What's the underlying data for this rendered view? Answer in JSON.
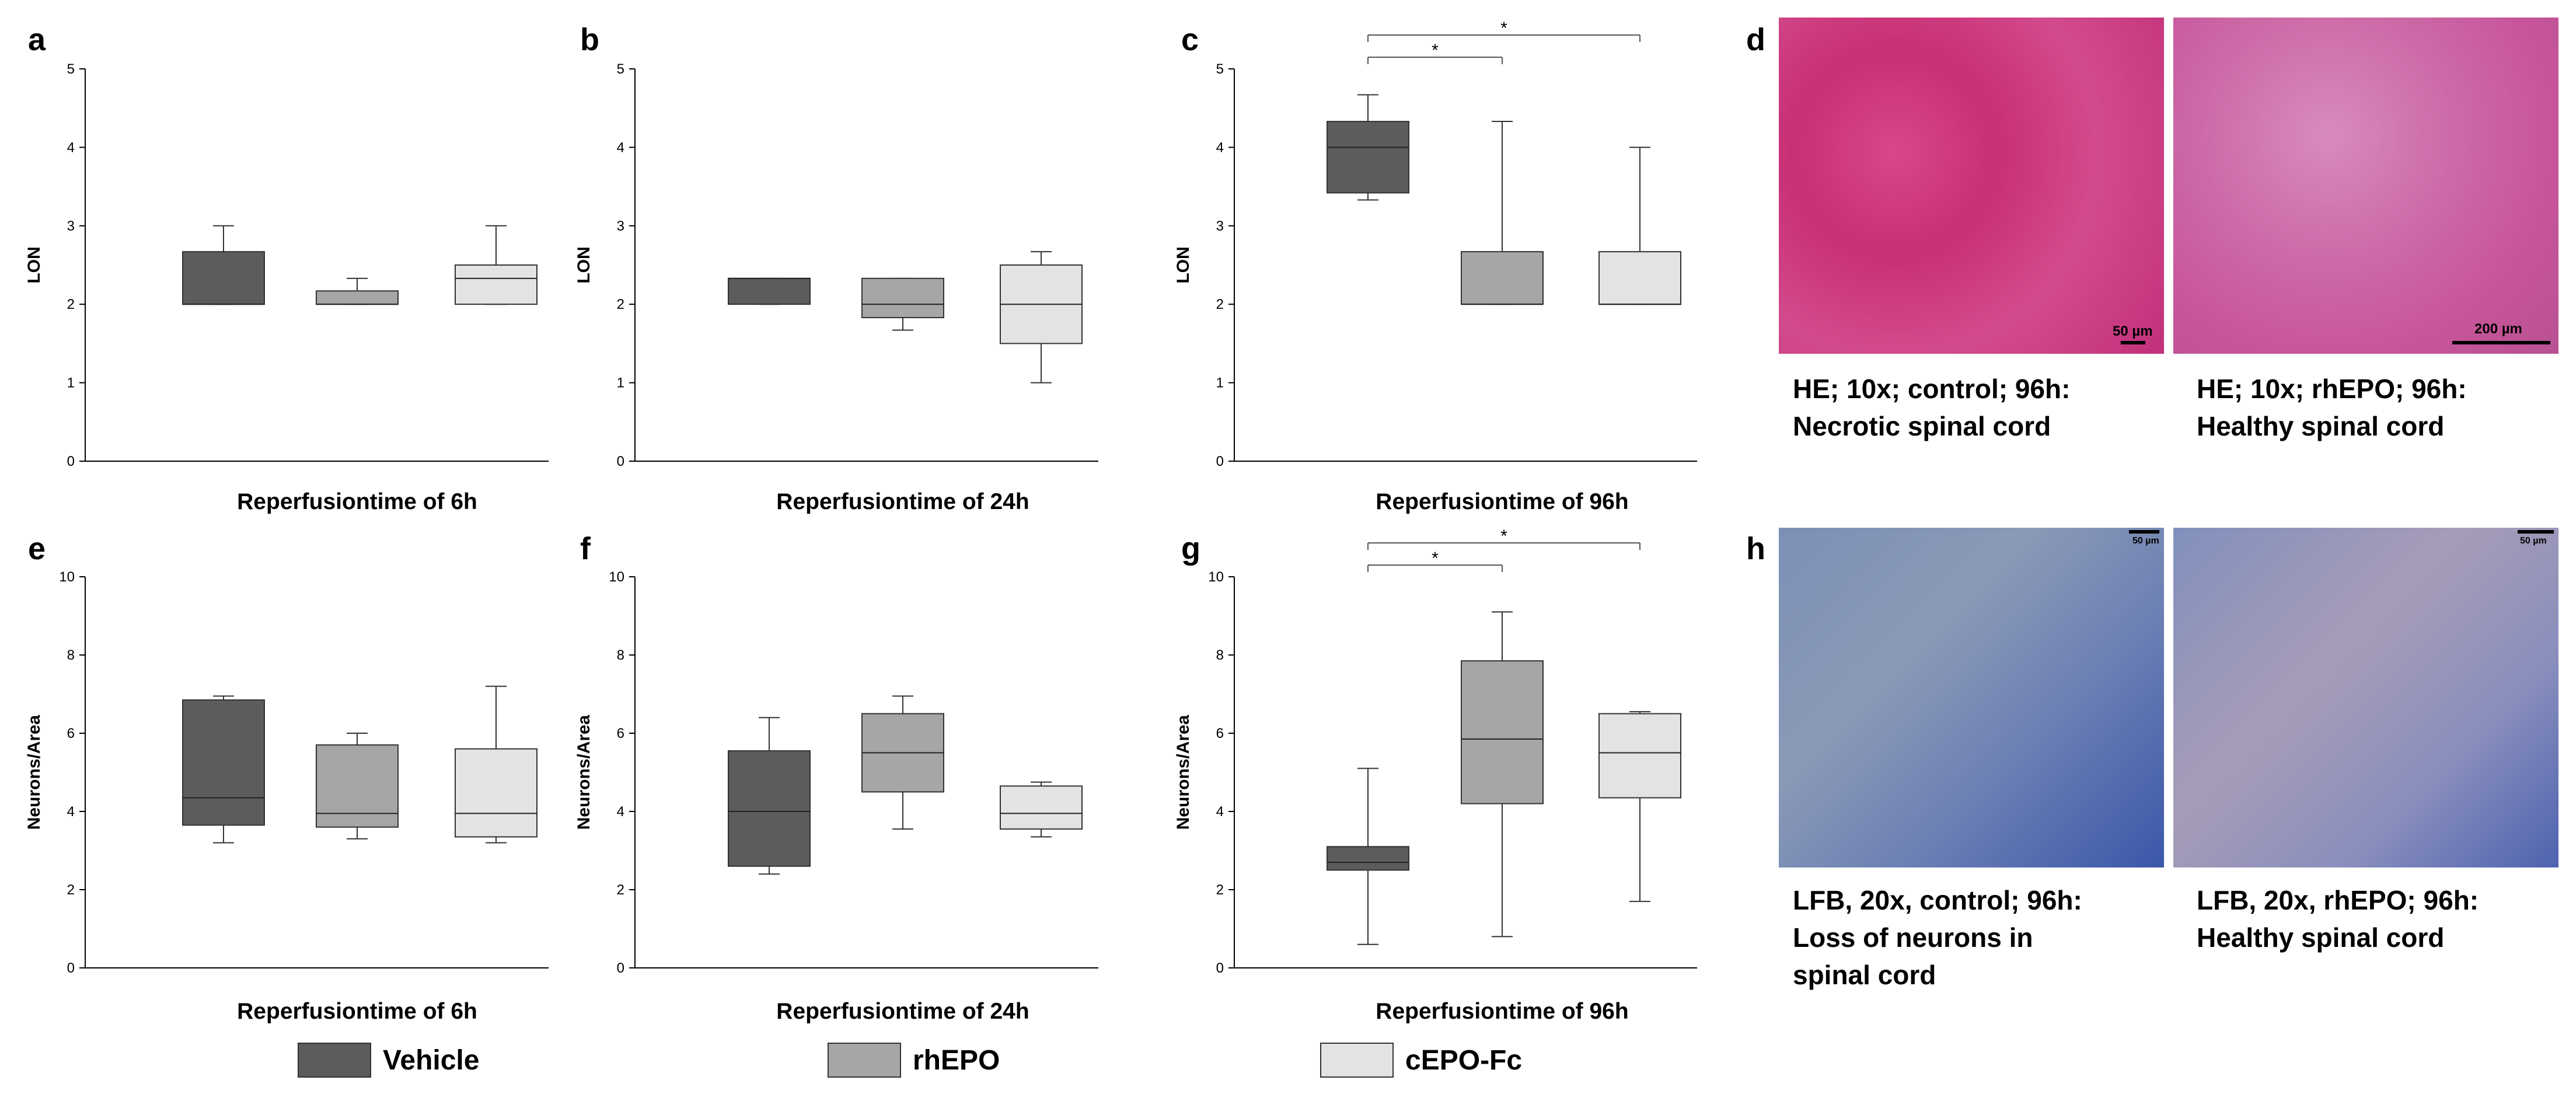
{
  "colors": {
    "vehicle": "#5c5c5c",
    "rhepo": "#a6a6a6",
    "cepo": "#e3e3e3",
    "axis": "#000000",
    "whisker": "#333333"
  },
  "legend": [
    {
      "label": "Vehicle",
      "color": "#5c5c5c"
    },
    {
      "label": "rhEPO",
      "color": "#a6a6a6"
    },
    {
      "label": "cEPO-Fc",
      "color": "#e3e3e3"
    }
  ],
  "chart_data": [
    {
      "panel": "a",
      "type": "box",
      "ylabel": "LON",
      "xlabel": "Reperfusiontime of 6h",
      "ylim": [
        0,
        5
      ],
      "yticks": [
        0,
        1,
        2,
        3,
        4,
        5
      ],
      "groups": [
        "Vehicle",
        "rhEPO",
        "cEPO-Fc"
      ],
      "boxes": [
        {
          "group": "Vehicle",
          "min": 2.0,
          "q1": 2.0,
          "median": 2.0,
          "q3": 2.67,
          "max": 3.0
        },
        {
          "group": "rhEPO",
          "min": 2.0,
          "q1": 2.0,
          "median": 2.0,
          "q3": 2.17,
          "max": 2.33
        },
        {
          "group": "cEPO-Fc",
          "min": 2.0,
          "q1": 2.0,
          "median": 2.33,
          "q3": 2.5,
          "max": 3.0
        }
      ],
      "significance": []
    },
    {
      "panel": "b",
      "type": "box",
      "ylabel": "LON",
      "xlabel": "Reperfusiontime of 24h",
      "ylim": [
        0,
        5
      ],
      "yticks": [
        0,
        1,
        2,
        3,
        4,
        5
      ],
      "groups": [
        "Vehicle",
        "rhEPO",
        "cEPO-Fc"
      ],
      "boxes": [
        {
          "group": "Vehicle",
          "min": 2.0,
          "q1": 2.0,
          "median": 2.33,
          "q3": 2.33,
          "max": 2.33
        },
        {
          "group": "rhEPO",
          "min": 1.67,
          "q1": 1.83,
          "median": 2.0,
          "q3": 2.33,
          "max": 2.33
        },
        {
          "group": "cEPO-Fc",
          "min": 1.0,
          "q1": 1.5,
          "median": 2.0,
          "q3": 2.5,
          "max": 2.67
        }
      ],
      "significance": []
    },
    {
      "panel": "c",
      "type": "box",
      "ylabel": "LON",
      "xlabel": "Reperfusiontime of 96h",
      "ylim": [
        0,
        5
      ],
      "yticks": [
        0,
        1,
        2,
        3,
        4,
        5
      ],
      "groups": [
        "Vehicle",
        "rhEPO",
        "cEPO-Fc"
      ],
      "boxes": [
        {
          "group": "Vehicle",
          "min": 3.33,
          "q1": 3.42,
          "median": 4.0,
          "q3": 4.33,
          "max": 4.67
        },
        {
          "group": "rhEPO",
          "min": 2.0,
          "q1": 2.0,
          "median": 2.0,
          "q3": 2.67,
          "max": 4.33
        },
        {
          "group": "cEPO-Fc",
          "min": 2.0,
          "q1": 2.0,
          "median": 2.0,
          "q3": 2.67,
          "max": 4.0
        }
      ],
      "significance": [
        {
          "from": "Vehicle",
          "to": "rhEPO",
          "label": "*",
          "level": 1
        },
        {
          "from": "Vehicle",
          "to": "cEPO-Fc",
          "label": "*",
          "level": 2
        }
      ]
    },
    {
      "panel": "e",
      "type": "box",
      "ylabel": "Neurons/Area",
      "xlabel": "Reperfusiontime of 6h",
      "ylim": [
        0,
        10
      ],
      "yticks": [
        0,
        2,
        4,
        6,
        8,
        10
      ],
      "groups": [
        "Vehicle",
        "rhEPO",
        "cEPO-Fc"
      ],
      "boxes": [
        {
          "group": "Vehicle",
          "min": 3.2,
          "q1": 3.65,
          "median": 4.35,
          "q3": 6.85,
          "max": 6.95
        },
        {
          "group": "rhEPO",
          "min": 3.3,
          "q1": 3.6,
          "median": 3.95,
          "q3": 5.7,
          "max": 6.0
        },
        {
          "group": "cEPO-Fc",
          "min": 3.2,
          "q1": 3.35,
          "median": 3.95,
          "q3": 5.6,
          "max": 7.2
        }
      ],
      "significance": []
    },
    {
      "panel": "f",
      "type": "box",
      "ylabel": "Neurons/Area",
      "xlabel": "Reperfusiontime of 24h",
      "ylim": [
        0,
        10
      ],
      "yticks": [
        0,
        2,
        4,
        6,
        8,
        10
      ],
      "groups": [
        "Vehicle",
        "rhEPO",
        "cEPO-Fc"
      ],
      "boxes": [
        {
          "group": "Vehicle",
          "min": 2.4,
          "q1": 2.6,
          "median": 4.0,
          "q3": 5.55,
          "max": 6.4
        },
        {
          "group": "rhEPO",
          "min": 3.55,
          "q1": 4.5,
          "median": 5.5,
          "q3": 6.5,
          "max": 6.95
        },
        {
          "group": "cEPO-Fc",
          "min": 3.35,
          "q1": 3.55,
          "median": 3.95,
          "q3": 4.65,
          "max": 4.75
        }
      ],
      "significance": []
    },
    {
      "panel": "g",
      "type": "box",
      "ylabel": "Neurons/Area",
      "xlabel": "Reperfusiontime of 96h",
      "ylim": [
        0,
        10
      ],
      "yticks": [
        0,
        2,
        4,
        6,
        8,
        10
      ],
      "groups": [
        "Vehicle",
        "rhEPO",
        "cEPO-Fc"
      ],
      "boxes": [
        {
          "group": "Vehicle",
          "min": 0.6,
          "q1": 2.5,
          "median": 2.7,
          "q3": 3.1,
          "max": 5.1
        },
        {
          "group": "rhEPO",
          "min": 0.8,
          "q1": 4.2,
          "median": 5.85,
          "q3": 7.85,
          "max": 9.1
        },
        {
          "group": "cEPO-Fc",
          "min": 1.7,
          "q1": 4.35,
          "median": 5.5,
          "q3": 6.5,
          "max": 6.55
        }
      ],
      "significance": [
        {
          "from": "Vehicle",
          "to": "rhEPO",
          "label": "*",
          "level": 1
        },
        {
          "from": "Vehicle",
          "to": "cEPO-Fc",
          "label": "*",
          "level": 2
        }
      ]
    }
  ],
  "micrographs": {
    "d": {
      "letter": "d",
      "left": {
        "scale": "50 µm",
        "caption": [
          "HE; 10x; control; 96h:",
          "Necrotic spinal cord"
        ]
      },
      "right": {
        "scale": "200 µm",
        "caption": [
          "HE; 10x; rhEPO; 96h:",
          "Healthy spinal cord"
        ]
      }
    },
    "h": {
      "letter": "h",
      "left": {
        "scale": "50 µm",
        "caption": [
          "LFB, 20x, control; 96h:",
          "Loss of neurons in",
          "spinal cord"
        ]
      },
      "right": {
        "scale": "50 µm",
        "caption": [
          "LFB, 20x, rhEPO; 96h:",
          "Healthy spinal cord"
        ]
      }
    }
  }
}
